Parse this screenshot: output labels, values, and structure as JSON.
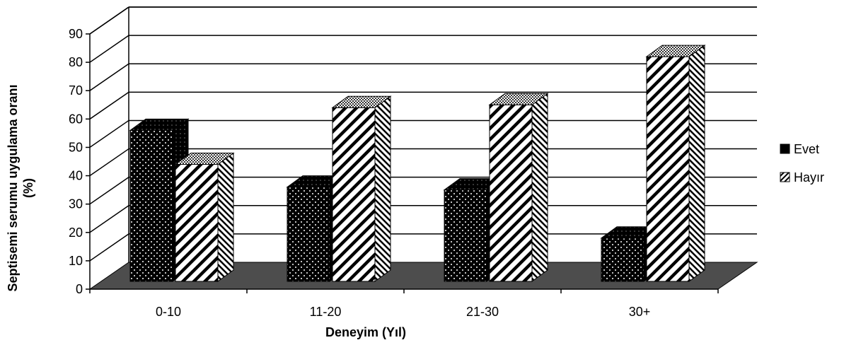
{
  "chart_data": {
    "type": "bar",
    "title": "",
    "xlabel": "Deneyim (Yıl)",
    "ylabel_line1": "Septisemi serumu uygulama oranı",
    "ylabel_line2": "(%)",
    "categories": [
      "0-10",
      "11-20",
      "21-30",
      "30+"
    ],
    "series": [
      {
        "name": "Evet",
        "values": [
          56,
          36,
          35,
          18
        ],
        "color": "#000000",
        "pattern": "dots"
      },
      {
        "name": "Hayır",
        "values": [
          44,
          64,
          65,
          82
        ],
        "color": "#ffffff",
        "pattern": "diagonal-stripes"
      }
    ],
    "ylim": [
      0,
      90
    ],
    "yticks": [
      "0",
      "10",
      "20",
      "30",
      "40",
      "50",
      "60",
      "70",
      "80",
      "90"
    ],
    "grid": true,
    "style": "3d-clustered-column",
    "legend_position": "right"
  }
}
